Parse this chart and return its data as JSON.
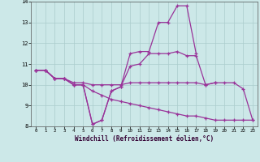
{
  "xlabel": "Windchill (Refroidissement éolien,°C)",
  "bg_color": "#cce8e8",
  "grid_color": "#aacccc",
  "line_color": "#993399",
  "xlim": [
    -0.5,
    23.5
  ],
  "ylim": [
    8,
    14
  ],
  "xticks": [
    0,
    1,
    2,
    3,
    4,
    5,
    6,
    7,
    8,
    9,
    10,
    11,
    12,
    13,
    14,
    15,
    16,
    17,
    18,
    19,
    20,
    21,
    22,
    23
  ],
  "yticks": [
    8,
    9,
    10,
    11,
    12,
    13,
    14
  ],
  "series": [
    {
      "x": [
        0,
        1,
        2,
        3,
        4,
        5,
        6,
        7,
        8,
        9,
        10,
        11,
        12,
        13,
        14,
        15,
        16,
        17
      ],
      "y": [
        10.7,
        10.7,
        10.3,
        10.3,
        10.0,
        10.0,
        8.1,
        8.3,
        9.7,
        9.9,
        11.5,
        11.6,
        11.6,
        13.0,
        13.0,
        13.8,
        13.8,
        11.5
      ]
    },
    {
      "x": [
        0,
        1,
        2,
        3,
        4,
        5,
        6,
        7,
        8,
        9,
        10,
        11,
        12,
        13,
        14,
        15,
        16,
        17,
        18,
        19
      ],
      "y": [
        10.7,
        10.7,
        10.3,
        10.3,
        10.0,
        10.0,
        8.1,
        8.3,
        9.7,
        9.9,
        10.9,
        11.0,
        11.5,
        11.5,
        11.5,
        11.6,
        11.4,
        11.4,
        10.0,
        10.1
      ]
    },
    {
      "x": [
        0,
        1,
        2,
        3,
        4,
        5,
        6,
        7,
        8,
        9,
        10,
        11,
        12,
        13,
        14,
        15,
        16,
        17,
        18,
        19,
        20,
        21,
        22,
        23
      ],
      "y": [
        10.7,
        10.7,
        10.3,
        10.3,
        10.1,
        10.1,
        10.0,
        10.0,
        10.0,
        10.0,
        10.1,
        10.1,
        10.1,
        10.1,
        10.1,
        10.1,
        10.1,
        10.1,
        10.0,
        10.1,
        10.1,
        10.1,
        9.8,
        8.3
      ]
    },
    {
      "x": [
        0,
        1,
        2,
        3,
        4,
        5,
        6,
        7,
        8,
        9,
        10,
        11,
        12,
        13,
        14,
        15,
        16,
        17,
        18,
        19,
        20,
        21,
        22,
        23
      ],
      "y": [
        10.7,
        10.7,
        10.3,
        10.3,
        10.0,
        10.0,
        9.7,
        9.5,
        9.3,
        9.2,
        9.1,
        9.0,
        8.9,
        8.8,
        8.7,
        8.6,
        8.5,
        8.5,
        8.4,
        8.3,
        8.3,
        8.3,
        8.3,
        8.3
      ]
    }
  ]
}
